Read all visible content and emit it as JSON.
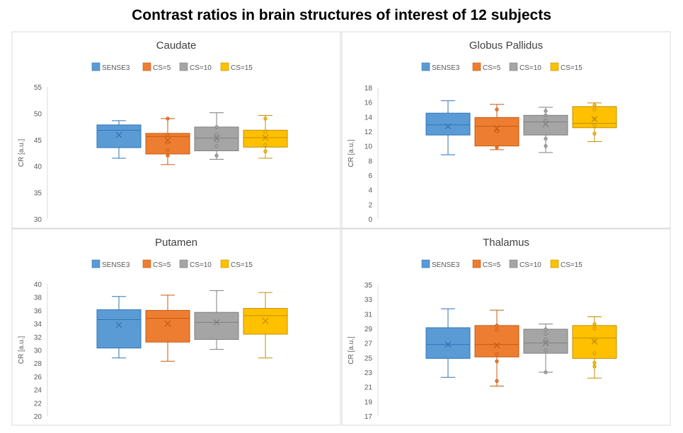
{
  "title": "Contrast ratios in brain structures of interest of 12 subjects",
  "colors": {
    "SENSE3": "#5b9bd5",
    "SENSE3_dark": "#2e75b6",
    "CS5": "#ed7d31",
    "CS5_dark": "#c55a11",
    "CS10": "#a5a5a5",
    "CS10_dark": "#7f7f7f",
    "CS15": "#ffc000",
    "CS15_dark": "#bf9000",
    "grid": "#d9d9d9",
    "axis_text": "#595959"
  },
  "chart_data": [
    {
      "type": "boxplot",
      "title": "Caudate",
      "ylabel": "CR [a.u.]",
      "ylim": [
        30,
        55
      ],
      "yticks": [
        "30",
        "35",
        "40",
        "45",
        "50",
        "55"
      ],
      "legend": [
        "SENSE3",
        "CS=5",
        "CS=10",
        "CS=15"
      ],
      "series": [
        {
          "name": "SENSE3",
          "min": 41.5,
          "q1": 43.5,
          "median": 46.8,
          "q3": 47.8,
          "max": 48.6,
          "mean": 45.9,
          "points": []
        },
        {
          "name": "CS=5",
          "min": 40.3,
          "q1": 42.3,
          "median": 45.6,
          "q3": 46.2,
          "max": 49.0,
          "mean": 44.9,
          "points": [
            49.0,
            46.0,
            44.5,
            43.0,
            42.0
          ]
        },
        {
          "name": "CS=10",
          "min": 41.3,
          "q1": 42.9,
          "median": 45.3,
          "q3": 47.4,
          "max": 50.1,
          "mean": 45.3,
          "points": [
            47.4,
            46.0,
            44.8,
            43.8,
            42.0
          ]
        },
        {
          "name": "CS=15",
          "min": 41.5,
          "q1": 43.6,
          "median": 45.4,
          "q3": 46.8,
          "max": 49.6,
          "mean": 45.4,
          "points": [
            49.0,
            46.5,
            44.0,
            42.8
          ]
        }
      ]
    },
    {
      "type": "boxplot",
      "title": "Globus Pallidus",
      "ylabel": "CR [a.u.]",
      "ylim": [
        0,
        18
      ],
      "yticks": [
        "0",
        "2",
        "4",
        "6",
        "8",
        "10",
        "12",
        "14",
        "16",
        "18"
      ],
      "legend": [
        "SENSE3",
        "CS=5",
        "CS=10",
        "CS=15"
      ],
      "series": [
        {
          "name": "SENSE3",
          "min": 8.8,
          "q1": 11.5,
          "median": 12.9,
          "q3": 14.5,
          "max": 16.2,
          "mean": 12.7,
          "points": []
        },
        {
          "name": "CS=5",
          "min": 9.5,
          "q1": 10.0,
          "median": 12.7,
          "q3": 13.9,
          "max": 15.7,
          "mean": 12.4,
          "points": [
            15.0,
            12.0,
            9.8
          ]
        },
        {
          "name": "CS=10",
          "min": 9.1,
          "q1": 11.5,
          "median": 13.3,
          "q3": 14.2,
          "max": 15.3,
          "mean": 13.0,
          "points": [
            14.8,
            14.2,
            13.5,
            11.0,
            10.0
          ]
        },
        {
          "name": "CS=15",
          "min": 10.6,
          "q1": 12.5,
          "median": 13.1,
          "q3": 15.4,
          "max": 15.9,
          "mean": 13.7,
          "points": [
            15.6,
            15.0,
            13.7,
            12.8,
            11.7
          ]
        }
      ]
    },
    {
      "type": "boxplot",
      "title": "Putamen",
      "ylabel": "CR [a.u.]",
      "ylim": [
        20,
        40
      ],
      "yticks": [
        "20",
        "22",
        "24",
        "26",
        "28",
        "30",
        "32",
        "34",
        "36",
        "38",
        "40"
      ],
      "legend": [
        "SENSE3",
        "CS=5",
        "CS=10",
        "CS=15"
      ],
      "series": [
        {
          "name": "SENSE3",
          "min": 28.8,
          "q1": 30.3,
          "median": 34.6,
          "q3": 36.1,
          "max": 38.1,
          "mean": 33.8,
          "points": []
        },
        {
          "name": "CS=5",
          "min": 28.3,
          "q1": 31.2,
          "median": 34.8,
          "q3": 36.0,
          "max": 38.3,
          "mean": 34.0,
          "points": []
        },
        {
          "name": "CS=10",
          "min": 30.1,
          "q1": 31.6,
          "median": 34.2,
          "q3": 35.7,
          "max": 39.0,
          "mean": 34.2,
          "points": []
        },
        {
          "name": "CS=15",
          "min": 28.8,
          "q1": 32.4,
          "median": 35.2,
          "q3": 36.3,
          "max": 38.7,
          "mean": 34.4,
          "points": []
        }
      ]
    },
    {
      "type": "boxplot",
      "title": "Thalamus",
      "ylabel": "CR [a.u.]",
      "ylim": [
        17,
        35
      ],
      "yticks": [
        "17",
        "19",
        "21",
        "23",
        "25",
        "27",
        "29",
        "31",
        "33",
        "35"
      ],
      "legend": [
        "SENSE3",
        "CS=5",
        "CS=10",
        "CS=15"
      ],
      "series": [
        {
          "name": "SENSE3",
          "min": 22.3,
          "q1": 24.9,
          "median": 26.8,
          "q3": 29.1,
          "max": 31.7,
          "mean": 26.8,
          "points": []
        },
        {
          "name": "CS=5",
          "min": 21.1,
          "q1": 25.1,
          "median": 26.8,
          "q3": 29.4,
          "max": 31.5,
          "mean": 26.7,
          "points": [
            29.4,
            28.8,
            25.5,
            24.5,
            21.8
          ]
        },
        {
          "name": "CS=10",
          "min": 23.0,
          "q1": 25.6,
          "median": 27.0,
          "q3": 28.9,
          "max": 29.6,
          "mean": 27.0,
          "points": [
            28.9,
            28.3,
            27.5,
            26.0,
            23.0
          ]
        },
        {
          "name": "CS=15",
          "min": 22.2,
          "q1": 24.9,
          "median": 27.7,
          "q3": 29.4,
          "max": 30.6,
          "mean": 27.2,
          "points": [
            29.6,
            29.0,
            27.3,
            25.6,
            24.3,
            23.8
          ]
        }
      ]
    }
  ]
}
